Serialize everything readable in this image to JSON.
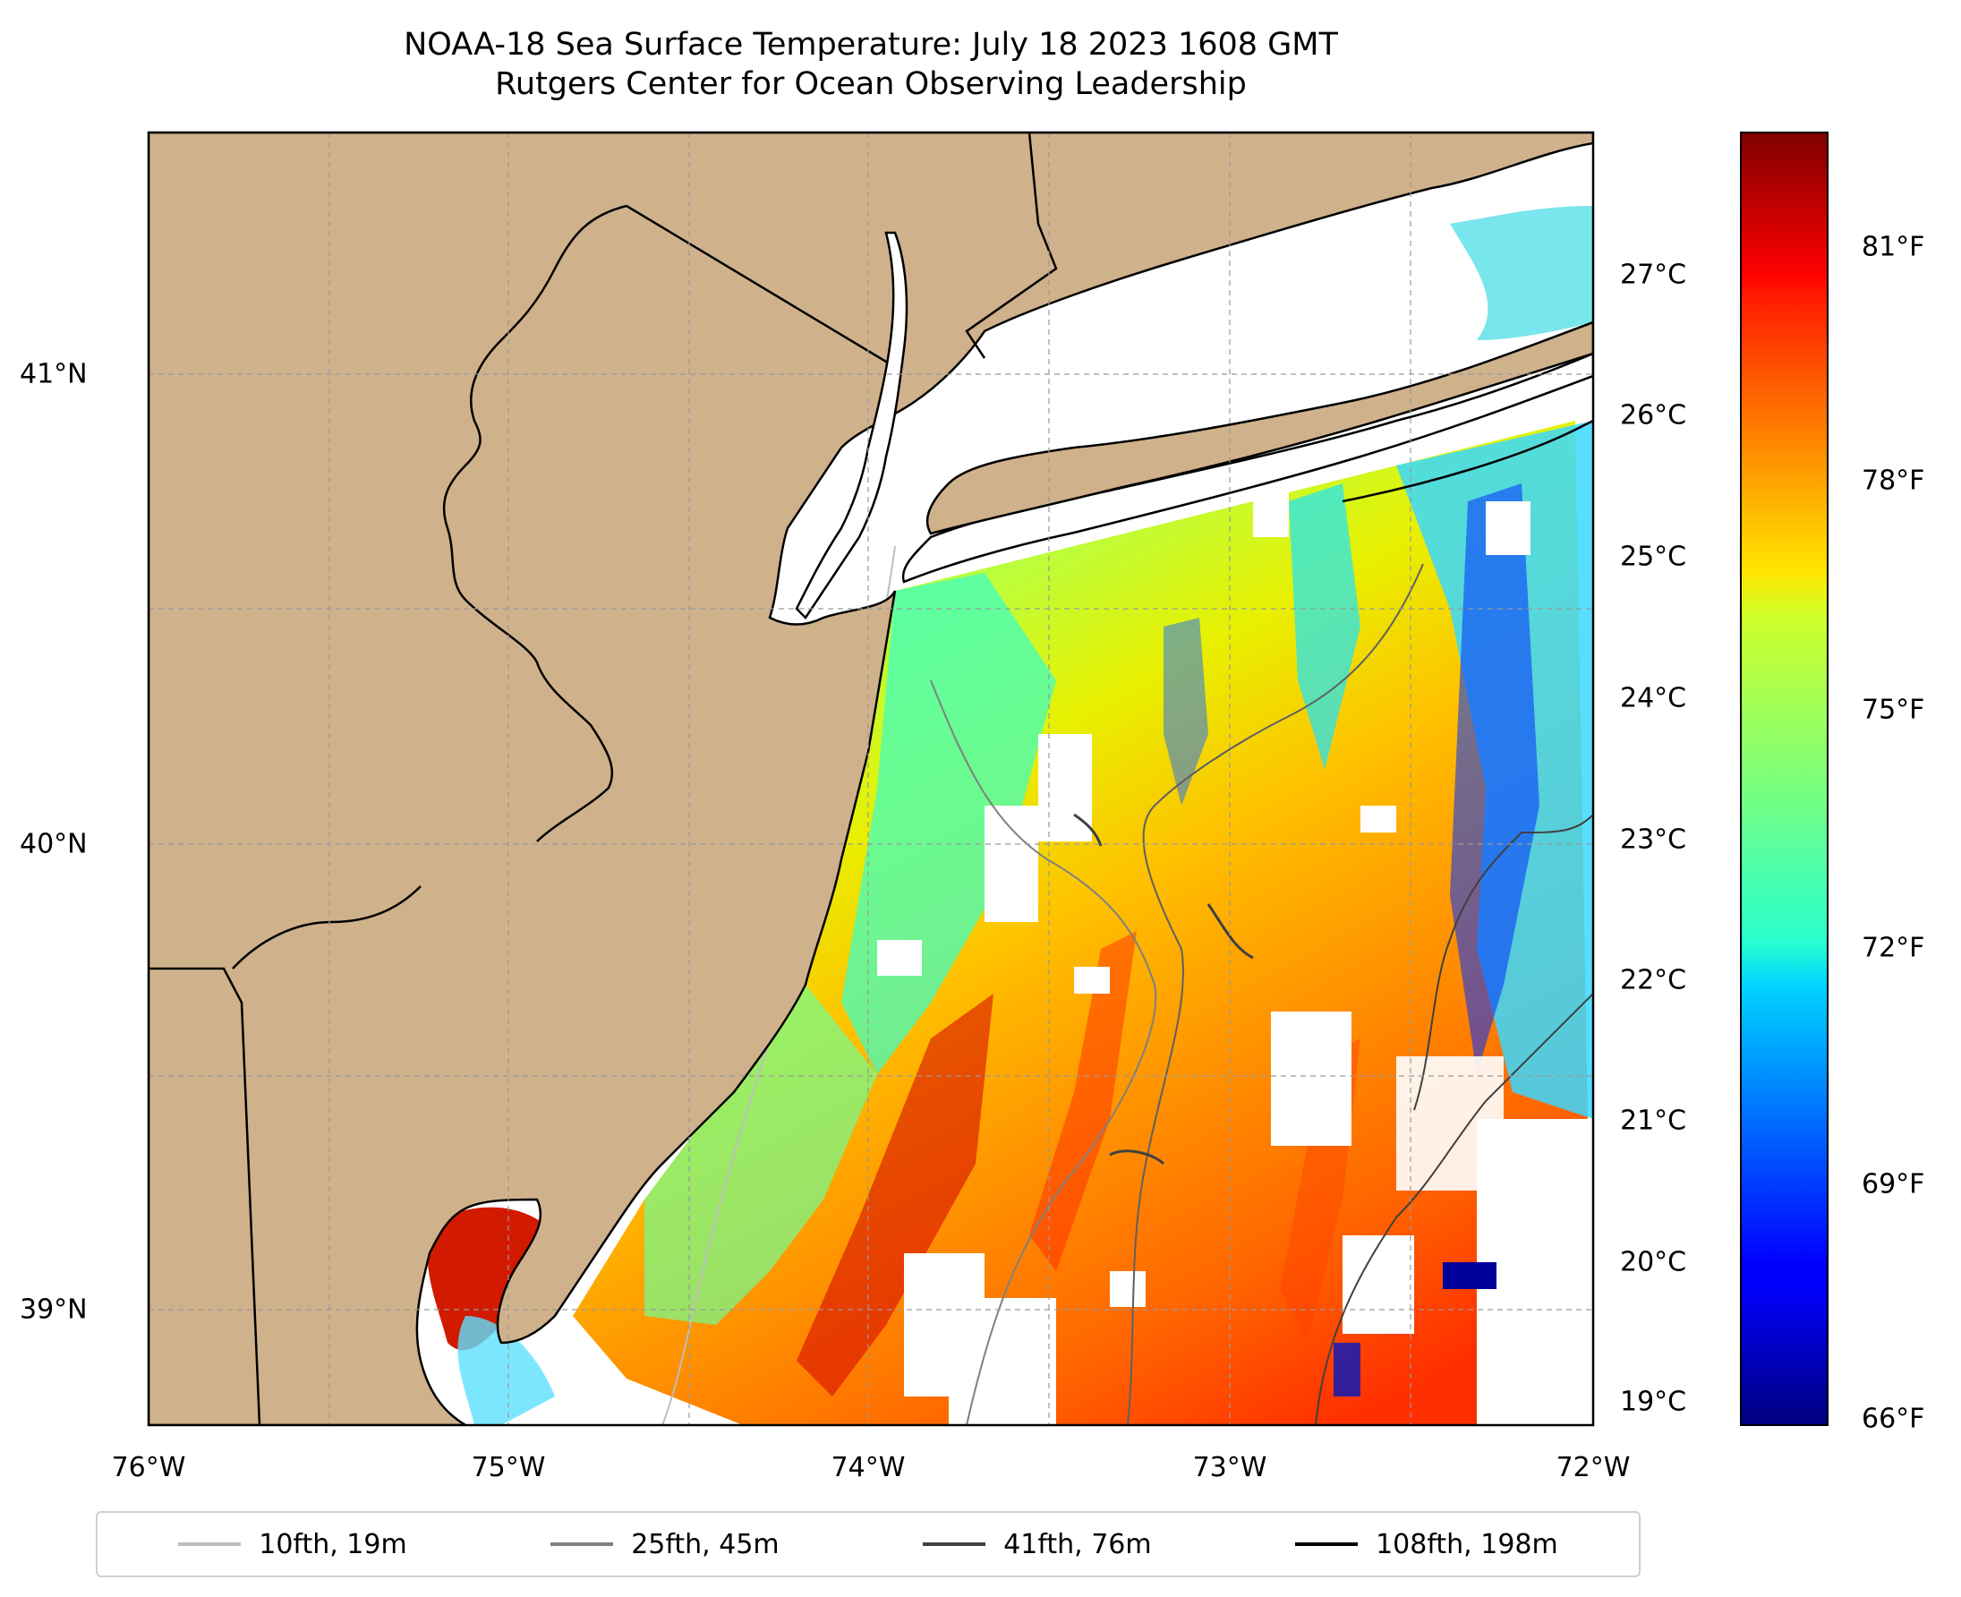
{
  "title": "NOAA-18 Sea Surface Temperature: July 18 2023 1608 GMT",
  "subtitle": "Rutgers Center for Ocean Observing Leadership",
  "map": {
    "lon_range": [
      -76.0,
      -72.0
    ],
    "lat_range": [
      38.75,
      41.52
    ],
    "land_color": "#cfb18b",
    "ocean_nodata_color": "#ffffff",
    "gridlines": true,
    "lon_ticks": [
      "76°W",
      "75°W",
      "74°W",
      "73°W",
      "72°W"
    ],
    "lat_ticks": [
      "41°N",
      "40°N",
      "39°N"
    ]
  },
  "colorbar": {
    "colormap": "jet",
    "celsius_ticks": [
      "27°C",
      "26°C",
      "25°C",
      "24°C",
      "23°C",
      "22°C",
      "21°C",
      "20°C",
      "19°C"
    ],
    "fahrenheit_ticks": [
      "81°F",
      "78°F",
      "75°F",
      "72°F",
      "69°F",
      "66°F"
    ]
  },
  "legend": [
    {
      "label": "10fth, 19m",
      "color": "#bebebe"
    },
    {
      "label": "25fth, 45m",
      "color": "#808080"
    },
    {
      "label": "41fth, 76m",
      "color": "#404040"
    },
    {
      "label": "108fth, 198m",
      "color": "#000000"
    }
  ]
}
